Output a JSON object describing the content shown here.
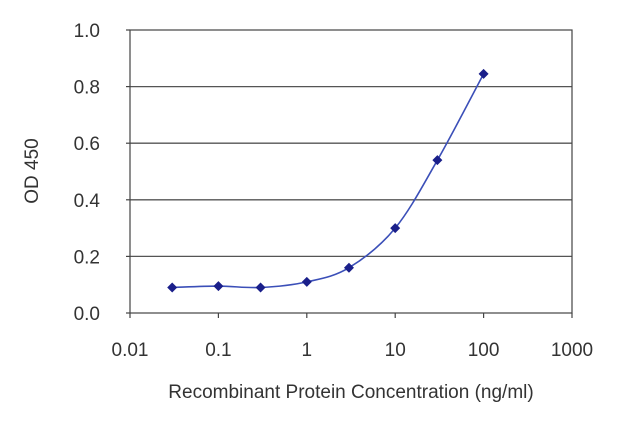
{
  "chart_data": {
    "type": "line",
    "title": "",
    "xlabel": "Recombinant Protein Concentration (ng/ml)",
    "ylabel": "OD 450",
    "x_scale": "log",
    "xlim": [
      0.01,
      1000
    ],
    "ylim": [
      0,
      1.0
    ],
    "x_ticks": [
      0.01,
      0.1,
      1,
      10,
      100,
      1000
    ],
    "x_tick_labels": [
      "0.01",
      "0.1",
      "1",
      "10",
      "100",
      "1000"
    ],
    "y_ticks": [
      0,
      0.2,
      0.4,
      0.6,
      0.8,
      1.0
    ],
    "y_tick_labels": [
      "0.0",
      "0.2",
      "0.4",
      "0.6",
      "0.8",
      "1.0"
    ],
    "grid": "horizontal",
    "series": [
      {
        "color": "#1a1f8a",
        "marker": "diamond",
        "x": [
          0.03,
          0.1,
          0.3,
          1,
          3,
          10,
          30,
          100
        ],
        "y": [
          0.09,
          0.095,
          0.09,
          0.11,
          0.16,
          0.3,
          0.54,
          0.845
        ]
      }
    ]
  }
}
